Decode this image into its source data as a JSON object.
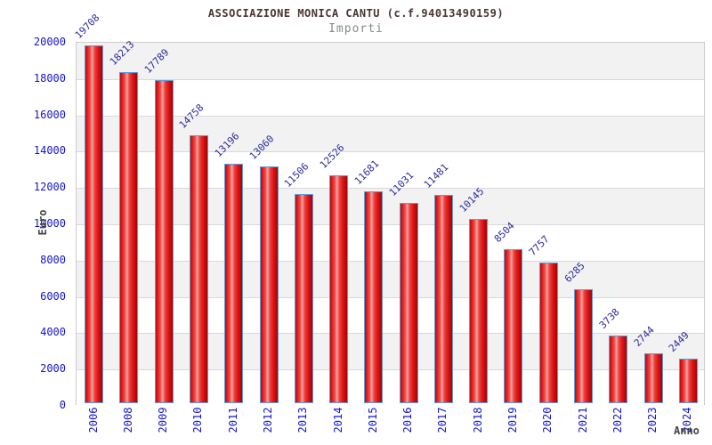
{
  "chart_data": {
    "type": "bar",
    "title": "ASSOCIAZIONE MONICA CANTU (c.f.94013490159)",
    "subtitle": "Importi",
    "xlabel": "Anno",
    "ylabel": "Euro",
    "categories": [
      "2006",
      "2008",
      "2009",
      "2010",
      "2011",
      "2012",
      "2013",
      "2014",
      "2015",
      "2016",
      "2017",
      "2018",
      "2019",
      "2020",
      "2021",
      "2022",
      "2023",
      "2024"
    ],
    "values": [
      19708,
      18213,
      17789,
      14758,
      13196,
      13060,
      11506,
      12526,
      11681,
      11031,
      11481,
      10145,
      8504,
      7757,
      6285,
      3738,
      2744,
      2449
    ],
    "ylim": [
      0,
      20000
    ],
    "ytick_interval": 2000,
    "yticks": [
      0,
      2000,
      4000,
      6000,
      8000,
      10000,
      12000,
      14000,
      16000,
      18000,
      20000
    ],
    "grid": "horizontal-bands-alternating",
    "legend": "none",
    "colors": {
      "title": "#4a3333",
      "subtitle": "#8a8a8a",
      "tick_label": "#1515c8",
      "value_label": "#2a2a9c",
      "axis_title": "#444444",
      "bar_fill": "#e51c1c",
      "bar_border": "#5f9dd8",
      "band_gray": "#f2f2f2",
      "band_white": "#ffffff",
      "gridline": "#d9d9d9"
    }
  }
}
